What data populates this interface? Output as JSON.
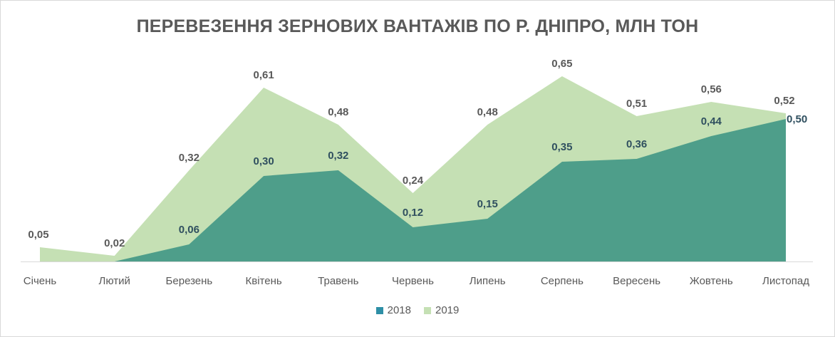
{
  "chart_data": {
    "type": "area",
    "title": "ПЕРЕВЕЗЕННЯ ЗЕРНОВИХ ВАНТАЖІВ ПО Р. ДНІПРО, МЛН ТОН",
    "categories": [
      "Січень",
      "Лютий",
      "Березень",
      "Квітень",
      "Травень",
      "Червень",
      "Липень",
      "Серпень",
      "Вересень",
      "Жовтень",
      "Листопад"
    ],
    "series": [
      {
        "name": "2019",
        "color": "#c5e0b4",
        "values": [
          0.05,
          0.02,
          0.32,
          0.61,
          0.48,
          0.24,
          0.48,
          0.65,
          0.51,
          0.56,
          0.52
        ],
        "labels": [
          "0,05",
          "0,02",
          "0,32",
          "0,61",
          "0,48",
          "0,24",
          "0,48",
          "0,65",
          "0,51",
          "0,56",
          "0,52"
        ]
      },
      {
        "name": "2018",
        "color": "#4e9e8a",
        "values": [
          null,
          0.0,
          0.06,
          0.3,
          0.32,
          0.12,
          0.15,
          0.35,
          0.36,
          0.44,
          0.5
        ],
        "labels": [
          "",
          "",
          "0,06",
          "0,30",
          "0,32",
          "0,12",
          "0,15",
          "0,35",
          "0,36",
          "0,44",
          "0,50"
        ]
      }
    ],
    "legend": [
      {
        "name": "2018",
        "color": "#2e8fa6"
      },
      {
        "name": "2019",
        "color": "#c5e0b4"
      }
    ],
    "ylim": [
      0,
      0.7
    ],
    "grid": false,
    "legend_position": "bottom"
  }
}
